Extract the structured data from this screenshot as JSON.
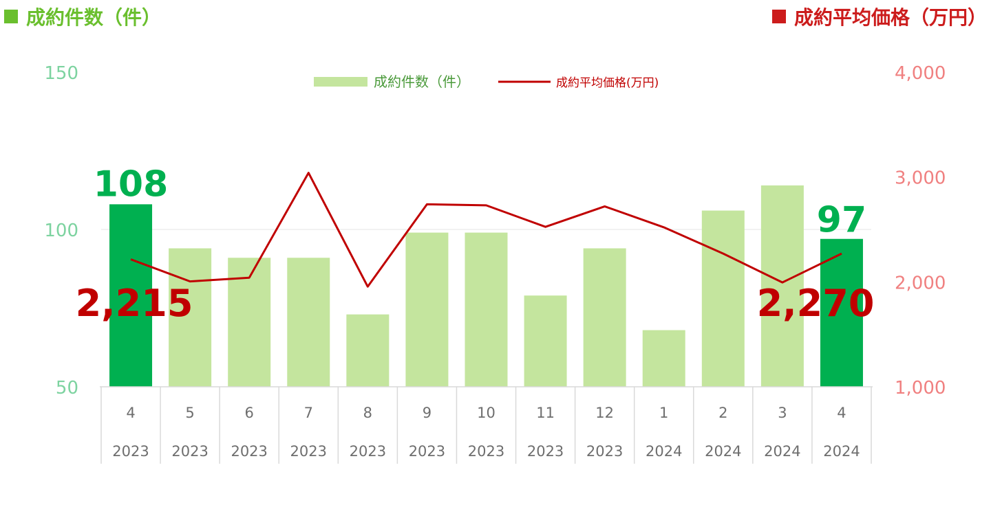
{
  "chart_data": {
    "type": "bar",
    "left_title": "成約件数（件）",
    "right_title": "成約平均価格（万円）",
    "legend": {
      "bar_label": "成約件数（件）",
      "line_label": "成約平均価格(万円)",
      "placement": "top-center"
    },
    "categories": [
      {
        "month": "4",
        "year": "2023"
      },
      {
        "month": "5",
        "year": "2023"
      },
      {
        "month": "6",
        "year": "2023"
      },
      {
        "month": "7",
        "year": "2023"
      },
      {
        "month": "8",
        "year": "2023"
      },
      {
        "month": "9",
        "year": "2023"
      },
      {
        "month": "10",
        "year": "2023"
      },
      {
        "month": "11",
        "year": "2023"
      },
      {
        "month": "12",
        "year": "2023"
      },
      {
        "month": "1",
        "year": "2024"
      },
      {
        "month": "2",
        "year": "2024"
      },
      {
        "month": "3",
        "year": "2024"
      },
      {
        "month": "4",
        "year": "2024"
      }
    ],
    "series": [
      {
        "kind": "bar",
        "values": [
          108,
          94,
          91,
          91,
          73,
          99,
          99,
          79,
          94,
          68,
          106,
          114,
          97
        ],
        "highlight": [
          true,
          false,
          false,
          false,
          false,
          false,
          false,
          false,
          false,
          false,
          false,
          false,
          true
        ]
      },
      {
        "kind": "line",
        "values": [
          2215,
          2005,
          2040,
          3040,
          1955,
          2740,
          2730,
          2525,
          2720,
          2520,
          2270,
          1995,
          2270
        ]
      }
    ],
    "y_left": {
      "min": 50,
      "max": 150,
      "ticks": [
        "50",
        "100",
        "150"
      ]
    },
    "y_right": {
      "min": 1000,
      "max": 4000,
      "ticks": [
        "1,000",
        "2,000",
        "3,000",
        "4,000"
      ]
    },
    "annotations": {
      "first_count": "108",
      "last_count": "97",
      "first_price": "2,215",
      "last_price": "2,270"
    },
    "gridlines": true,
    "colors": {
      "bar": "#c4e59e",
      "bar_highlight": "#00b050",
      "line": "#c00000",
      "left_axis": "#7dd3a0",
      "right_axis": "#f08080",
      "grid": "#e6e6e6",
      "title_left": "#6abf2e",
      "title_right": "#cc1c1c",
      "count_label": "#00b050",
      "price_label": "#c00000"
    }
  }
}
